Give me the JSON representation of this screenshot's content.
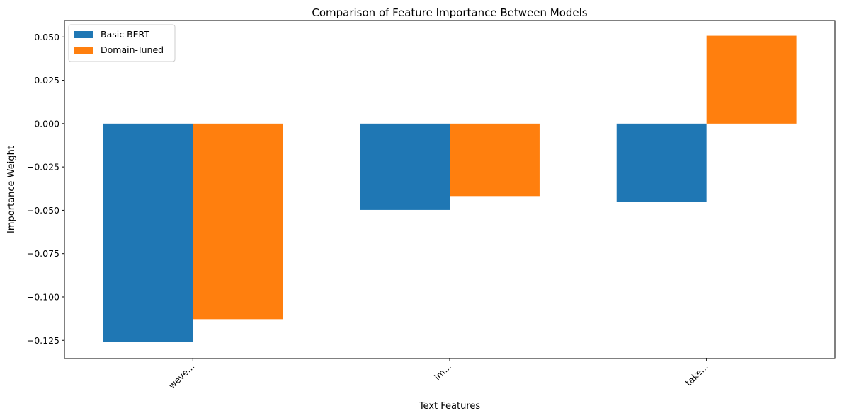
{
  "chart_data": {
    "type": "bar",
    "title": "Comparison of Feature Importance Between Models",
    "xlabel": "Text Features",
    "ylabel": "Importance Weight",
    "categories": [
      "weve...",
      "im...",
      "take..."
    ],
    "series": [
      {
        "name": "Basic BERT",
        "color": "#1f77b4",
        "values": [
          -0.126,
          -0.0498,
          -0.045
        ]
      },
      {
        "name": "Domain-Tuned",
        "color": "#ff7f0e",
        "values": [
          -0.1128,
          -0.0418,
          0.0507
        ]
      }
    ],
    "ylim": [
      -0.1355,
      0.0595
    ],
    "yticks": [
      -0.125,
      -0.1,
      -0.075,
      -0.05,
      -0.025,
      0.0,
      0.025,
      0.05
    ],
    "ytick_labels": [
      "−0.125",
      "−0.100",
      "−0.075",
      "−0.050",
      "−0.025",
      "0.000",
      "0.025",
      "0.050"
    ],
    "grid": false,
    "legend_position": "top-left",
    "xtick_rotation": "45"
  }
}
